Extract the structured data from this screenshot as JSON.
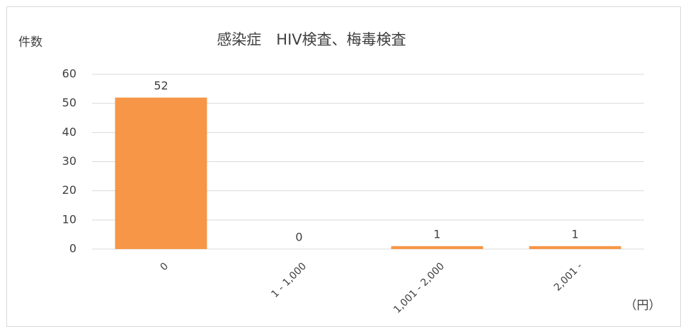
{
  "chart_data": {
    "type": "bar",
    "title": "感染症　HIV検査、梅毒検査",
    "y_label": "件数",
    "x_label": "（円）",
    "categories": [
      "0",
      "1 - 1,000",
      "1,001 - 2,000",
      "2,001 -"
    ],
    "values": [
      52,
      0,
      1,
      1
    ],
    "color": "#f79646",
    "ylim": [
      0,
      60
    ],
    "yticks": [
      0,
      10,
      20,
      30,
      40,
      50,
      60
    ],
    "grid": true
  }
}
